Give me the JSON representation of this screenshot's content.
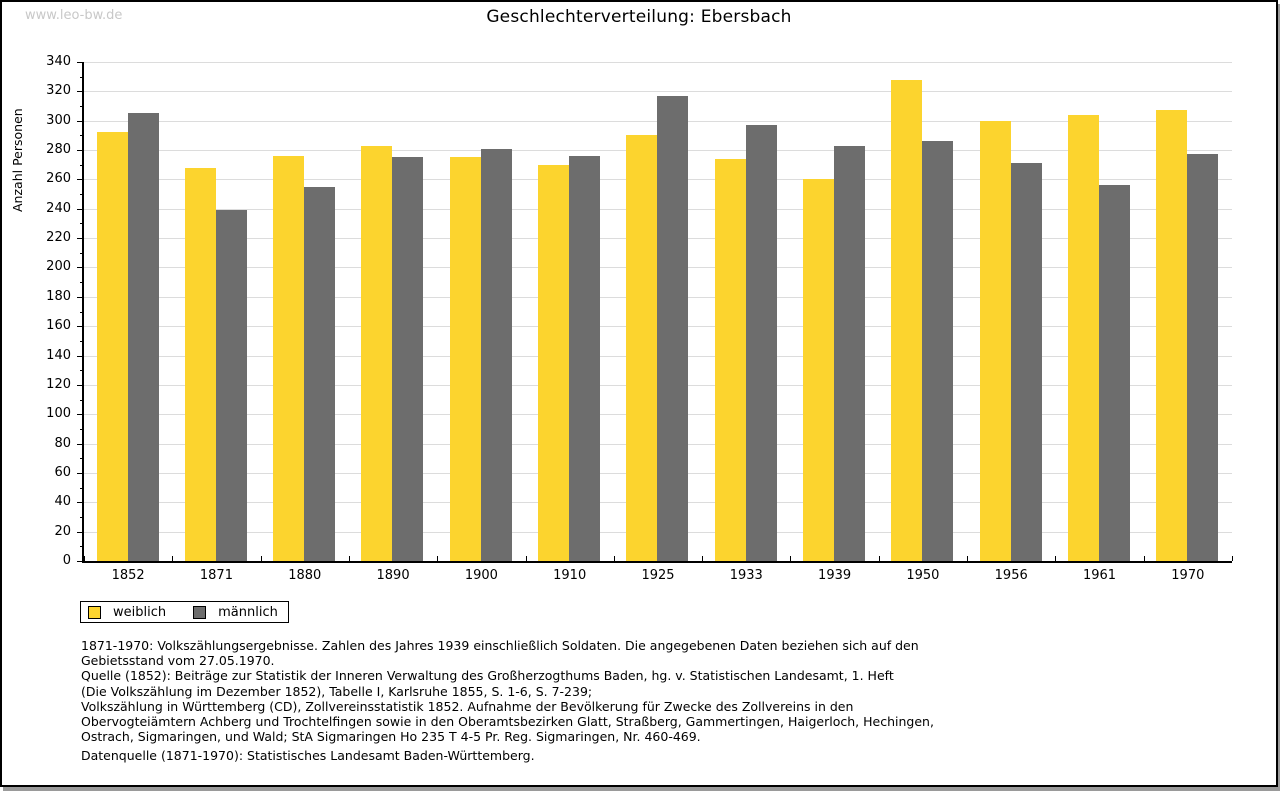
{
  "page": {
    "watermark": "www.leo-bw.de"
  },
  "chart_data": {
    "type": "bar",
    "title": "Geschlechterverteilung: Ebersbach",
    "xlabel": "",
    "ylabel": "Anzahl Personen",
    "categories": [
      "1852",
      "1871",
      "1880",
      "1890",
      "1900",
      "1910",
      "1925",
      "1933",
      "1939",
      "1950",
      "1956",
      "1961",
      "1970"
    ],
    "series": [
      {
        "name": "weiblich",
        "color": "#fcd42e",
        "values": [
          292,
          268,
          276,
          283,
          275,
          270,
          290,
          274,
          260,
          328,
          300,
          304,
          307
        ]
      },
      {
        "name": "männlich",
        "color": "#6d6d6d",
        "values": [
          305,
          239,
          255,
          275,
          281,
          276,
          317,
          297,
          283,
          286,
          271,
          256,
          277
        ]
      }
    ],
    "ylim": [
      0,
      340
    ],
    "ytick_step": 20,
    "yminor_step": 10,
    "grid": "horizontal-major",
    "gridline_color": "#dcdcdc",
    "legend_position": "bottom-left"
  },
  "legend": {
    "items": [
      {
        "label": "weiblich",
        "color": "#fcd42e"
      },
      {
        "label": "männlich",
        "color": "#6d6d6d"
      }
    ]
  },
  "footer": {
    "source_lines": [
      "1871-1970: Volkszählungsergebnisse. Zahlen des Jahres 1939 einschließlich Soldaten. Die angegebenen Daten beziehen sich auf den",
      "Gebietsstand vom 27.05.1970.",
      "Quelle (1852): Beiträge zur Statistik der Inneren Verwaltung des Großherzogthums Baden, hg. v. Statistischen Landesamt, 1. Heft",
      "(Die Volkszählung im Dezember 1852), Tabelle I, Karlsruhe 1855, S. 1-6, S. 7-239;",
      "Volkszählung in Württemberg (CD), Zollvereinsstatistik 1852. Aufnahme der Bevölkerung für Zwecke des Zollvereins in den",
      "Obervogteiämtern Achberg und Trochtelfingen sowie in den Oberamtsbezirken Glatt, Straßberg, Gammertingen, Haigerloch, Hechingen,",
      "Ostrach, Sigmaringen, und Wald; StA Sigmaringen Ho 235 T 4-5 Pr. Reg. Sigmaringen, Nr. 460-469."
    ],
    "datasource": "Datenquelle (1871-1970): Statistisches Landesamt Baden-Württemberg."
  }
}
